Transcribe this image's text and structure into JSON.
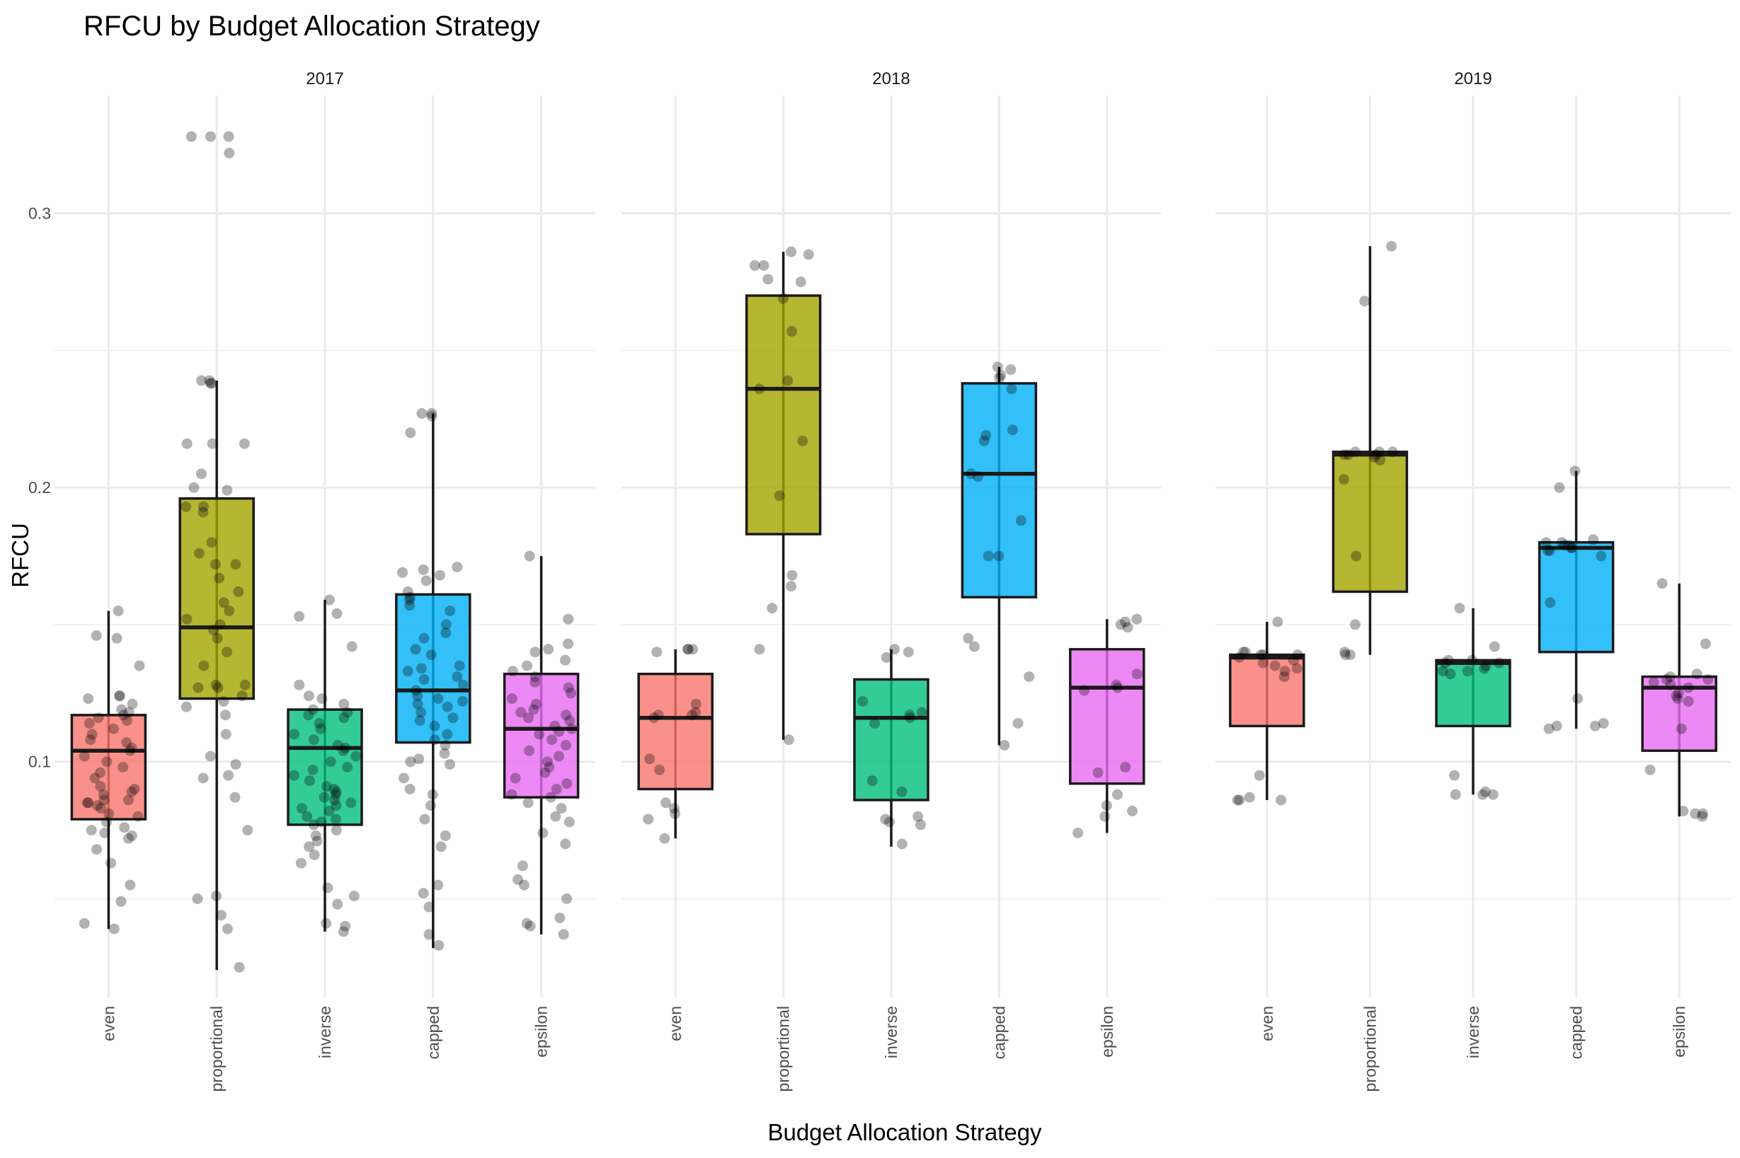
{
  "chart_data": {
    "type": "boxplot",
    "title": "RFCU by Budget Allocation Strategy",
    "xlabel": "Budget Allocation Strategy",
    "ylabel": "RFCU",
    "ylim": [
      0.014,
      0.343
    ],
    "yticks": [
      0.1,
      0.2,
      0.3
    ],
    "ytick_labels": [
      "0.1",
      "0.2",
      "0.3"
    ],
    "grid": true,
    "legend": "none",
    "categories": [
      "even",
      "proportional",
      "inverse",
      "capped",
      "epsilon"
    ],
    "colors": {
      "even": "#F8766D",
      "proportional": "#A3A500",
      "inverse": "#00BF7D",
      "capped": "#00B0F6",
      "epsilon": "#E76BF3"
    },
    "panels": [
      {
        "label": "2017",
        "boxes": [
          {
            "category": "even",
            "whisker_low": 0.039,
            "q1": 0.079,
            "median": 0.104,
            "q3": 0.117,
            "whisker_high": 0.155,
            "points": [
              0.155,
              0.146,
              0.145,
              0.135,
              0.124,
              0.124,
              0.123,
              0.121,
              0.119,
              0.118,
              0.117,
              0.116,
              0.115,
              0.114,
              0.112,
              0.11,
              0.108,
              0.107,
              0.105,
              0.104,
              0.102,
              0.1,
              0.098,
              0.096,
              0.094,
              0.091,
              0.09,
              0.089,
              0.088,
              0.086,
              0.086,
              0.085,
              0.085,
              0.084,
              0.083,
              0.081,
              0.08,
              0.078,
              0.076,
              0.075,
              0.074,
              0.073,
              0.072,
              0.068,
              0.063,
              0.055,
              0.049,
              0.041,
              0.039
            ]
          },
          {
            "category": "proportional",
            "whisker_low": 0.024,
            "q1": 0.123,
            "median": 0.149,
            "q3": 0.196,
            "whisker_high": 0.239,
            "points": [
              0.328,
              0.328,
              0.328,
              0.322,
              0.239,
              0.239,
              0.238,
              0.238,
              0.216,
              0.216,
              0.216,
              0.205,
              0.2,
              0.199,
              0.193,
              0.193,
              0.191,
              0.18,
              0.176,
              0.172,
              0.172,
              0.167,
              0.162,
              0.158,
              0.155,
              0.152,
              0.15,
              0.148,
              0.145,
              0.14,
              0.135,
              0.128,
              0.128,
              0.127,
              0.127,
              0.124,
              0.122,
              0.12,
              0.117,
              0.11,
              0.102,
              0.099,
              0.095,
              0.094,
              0.087,
              0.075,
              0.051,
              0.05,
              0.044,
              0.039,
              0.025
            ]
          },
          {
            "category": "inverse",
            "whisker_low": 0.038,
            "q1": 0.077,
            "median": 0.105,
            "q3": 0.119,
            "whisker_high": 0.159,
            "points": [
              0.159,
              0.154,
              0.153,
              0.142,
              0.128,
              0.124,
              0.123,
              0.121,
              0.119,
              0.118,
              0.117,
              0.116,
              0.114,
              0.112,
              0.11,
              0.108,
              0.106,
              0.105,
              0.104,
              0.102,
              0.1,
              0.098,
              0.097,
              0.095,
              0.093,
              0.091,
              0.09,
              0.089,
              0.088,
              0.087,
              0.086,
              0.085,
              0.084,
              0.083,
              0.082,
              0.08,
              0.079,
              0.078,
              0.077,
              0.075,
              0.073,
              0.071,
              0.069,
              0.066,
              0.063,
              0.054,
              0.051,
              0.048,
              0.041,
              0.04,
              0.038
            ]
          },
          {
            "category": "capped",
            "whisker_low": 0.032,
            "q1": 0.107,
            "median": 0.126,
            "q3": 0.161,
            "whisker_high": 0.227,
            "points": [
              0.227,
              0.227,
              0.226,
              0.22,
              0.171,
              0.17,
              0.169,
              0.168,
              0.166,
              0.162,
              0.16,
              0.159,
              0.157,
              0.155,
              0.15,
              0.147,
              0.145,
              0.141,
              0.139,
              0.135,
              0.134,
              0.133,
              0.131,
              0.13,
              0.128,
              0.126,
              0.124,
              0.123,
              0.122,
              0.121,
              0.12,
              0.118,
              0.116,
              0.115,
              0.113,
              0.11,
              0.108,
              0.106,
              0.103,
              0.101,
              0.1,
              0.099,
              0.094,
              0.09,
              0.088,
              0.084,
              0.079,
              0.073,
              0.069,
              0.055,
              0.052,
              0.047,
              0.037,
              0.033
            ]
          },
          {
            "category": "epsilon",
            "whisker_low": 0.037,
            "q1": 0.087,
            "median": 0.112,
            "q3": 0.132,
            "whisker_high": 0.175,
            "points": [
              0.175,
              0.152,
              0.143,
              0.141,
              0.14,
              0.137,
              0.135,
              0.133,
              0.131,
              0.129,
              0.127,
              0.125,
              0.123,
              0.121,
              0.119,
              0.118,
              0.117,
              0.116,
              0.115,
              0.113,
              0.112,
              0.111,
              0.11,
              0.108,
              0.106,
              0.104,
              0.102,
              0.1,
              0.098,
              0.096,
              0.094,
              0.092,
              0.09,
              0.088,
              0.087,
              0.085,
              0.083,
              0.08,
              0.078,
              0.074,
              0.07,
              0.062,
              0.057,
              0.055,
              0.05,
              0.043,
              0.041,
              0.04,
              0.037
            ]
          }
        ]
      },
      {
        "label": "2018",
        "boxes": [
          {
            "category": "even",
            "whisker_low": 0.072,
            "q1": 0.09,
            "median": 0.116,
            "q3": 0.132,
            "whisker_high": 0.141,
            "points": [
              0.141,
              0.141,
              0.141,
              0.14,
              0.121,
              0.118,
              0.117,
              0.117,
              0.116,
              0.101,
              0.097,
              0.085,
              0.083,
              0.081,
              0.079,
              0.072
            ]
          },
          {
            "category": "proportional",
            "whisker_low": 0.108,
            "q1": 0.183,
            "median": 0.236,
            "q3": 0.27,
            "whisker_high": 0.286,
            "points": [
              0.286,
              0.285,
              0.281,
              0.281,
              0.276,
              0.275,
              0.269,
              0.257,
              0.239,
              0.236,
              0.217,
              0.197,
              0.168,
              0.164,
              0.156,
              0.141,
              0.108
            ]
          },
          {
            "category": "inverse",
            "whisker_low": 0.069,
            "q1": 0.086,
            "median": 0.116,
            "q3": 0.13,
            "whisker_high": 0.141,
            "points": [
              0.141,
              0.14,
              0.138,
              0.122,
              0.118,
              0.117,
              0.116,
              0.114,
              0.093,
              0.089,
              0.08,
              0.079,
              0.078,
              0.077,
              0.07
            ]
          },
          {
            "category": "capped",
            "whisker_low": 0.106,
            "q1": 0.16,
            "median": 0.205,
            "q3": 0.238,
            "whisker_high": 0.244,
            "points": [
              0.244,
              0.243,
              0.241,
              0.24,
              0.236,
              0.221,
              0.219,
              0.217,
              0.205,
              0.204,
              0.188,
              0.175,
              0.175,
              0.145,
              0.142,
              0.131,
              0.114,
              0.106
            ]
          },
          {
            "category": "epsilon",
            "whisker_low": 0.074,
            "q1": 0.092,
            "median": 0.127,
            "q3": 0.141,
            "whisker_high": 0.152,
            "points": [
              0.152,
              0.151,
              0.15,
              0.149,
              0.132,
              0.128,
              0.127,
              0.126,
              0.098,
              0.096,
              0.088,
              0.084,
              0.082,
              0.08,
              0.074
            ]
          }
        ]
      },
      {
        "label": "2019",
        "boxes": [
          {
            "category": "even",
            "whisker_low": 0.086,
            "q1": 0.113,
            "median": 0.138,
            "q3": 0.139,
            "whisker_high": 0.151,
            "points": [
              0.151,
              0.14,
              0.14,
              0.139,
              0.139,
              0.139,
              0.138,
              0.137,
              0.136,
              0.135,
              0.134,
              0.133,
              0.131,
              0.095,
              0.087,
              0.086,
              0.086,
              0.086
            ]
          },
          {
            "category": "proportional",
            "whisker_low": 0.139,
            "q1": 0.162,
            "median": 0.212,
            "q3": 0.213,
            "whisker_high": 0.288,
            "points": [
              0.288,
              0.268,
              0.213,
              0.213,
              0.213,
              0.212,
              0.212,
              0.212,
              0.211,
              0.21,
              0.203,
              0.175,
              0.15,
              0.14,
              0.139,
              0.139
            ]
          },
          {
            "category": "inverse",
            "whisker_low": 0.088,
            "q1": 0.113,
            "median": 0.136,
            "q3": 0.137,
            "whisker_high": 0.156,
            "points": [
              0.156,
              0.142,
              0.137,
              0.137,
              0.136,
              0.136,
              0.135,
              0.134,
              0.133,
              0.133,
              0.132,
              0.095,
              0.089,
              0.088,
              0.088,
              0.088
            ]
          },
          {
            "category": "capped",
            "whisker_low": 0.112,
            "q1": 0.14,
            "median": 0.178,
            "q3": 0.18,
            "whisker_high": 0.206,
            "points": [
              0.206,
              0.2,
              0.181,
              0.18,
              0.18,
              0.179,
              0.179,
              0.178,
              0.178,
              0.177,
              0.177,
              0.175,
              0.158,
              0.123,
              0.114,
              0.113,
              0.113,
              0.112
            ]
          },
          {
            "category": "epsilon",
            "whisker_low": 0.08,
            "q1": 0.104,
            "median": 0.127,
            "q3": 0.131,
            "whisker_high": 0.165,
            "points": [
              0.165,
              0.143,
              0.132,
              0.131,
              0.13,
              0.13,
              0.129,
              0.128,
              0.127,
              0.125,
              0.124,
              0.123,
              0.122,
              0.112,
              0.097,
              0.082,
              0.081,
              0.081,
              0.08
            ]
          }
        ]
      }
    ]
  }
}
